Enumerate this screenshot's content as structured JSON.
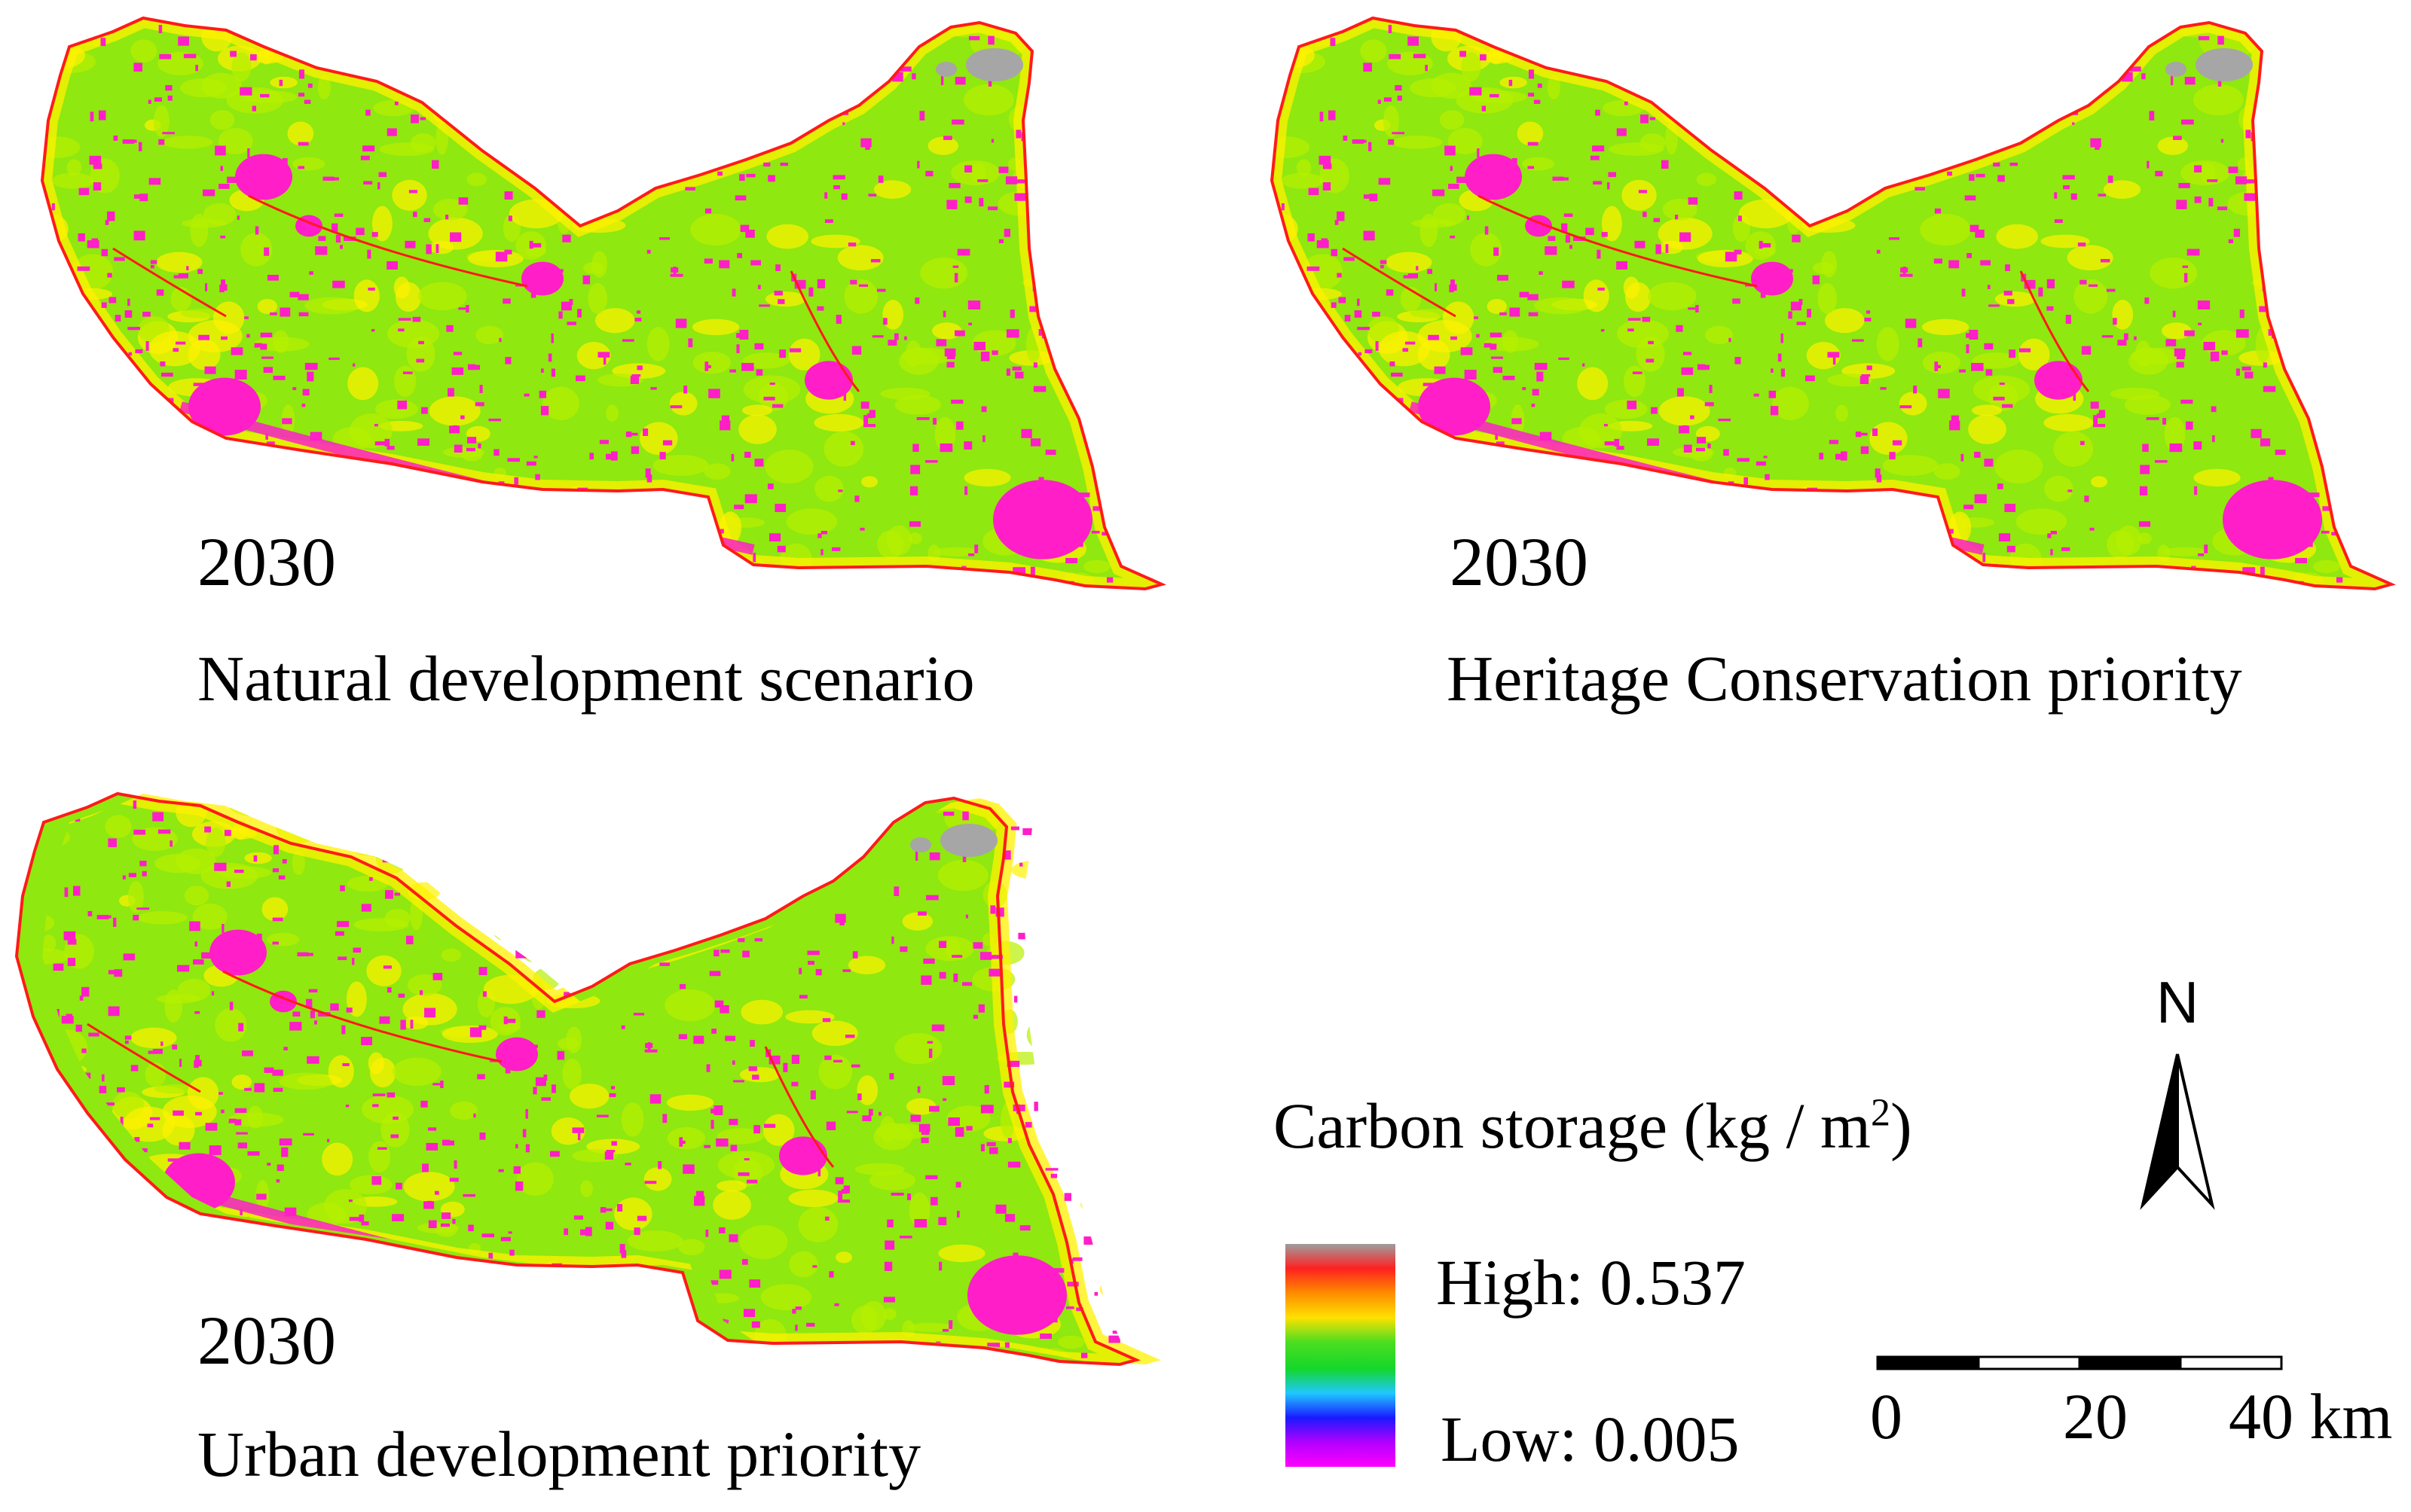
{
  "panels": [
    {
      "id": "natural",
      "year": "2030",
      "scenario": "Natural development scenario"
    },
    {
      "id": "heritage",
      "year": "2030",
      "scenario": "Heritage Conservation priority"
    },
    {
      "id": "urban",
      "year": "2030",
      "scenario": "Urban development priority"
    }
  ],
  "legend": {
    "title": "Carbon storage (kg / m",
    "title_sup": "2",
    "title_close": ")",
    "high_label": "High: 0.537",
    "low_label": "Low: 0.005",
    "ramp_colors": [
      "#9e9e9e",
      "#ff2020",
      "#ff8c00",
      "#ffe000",
      "#4cde21",
      "#14d72a",
      "#1fc8ff",
      "#1a1aff",
      "#b100ff",
      "#ff00ff"
    ]
  },
  "north_arrow": {
    "label": "N"
  },
  "scale_bar": {
    "labels": [
      "0",
      "20",
      "40 km"
    ]
  },
  "map_colors": {
    "base_green": "#8fe80f",
    "lime": "#b7f000",
    "yellow": "#fff200",
    "magenta": "#ff1ec8",
    "red": "#ff1a1a",
    "grey": "#a6a6a6"
  }
}
